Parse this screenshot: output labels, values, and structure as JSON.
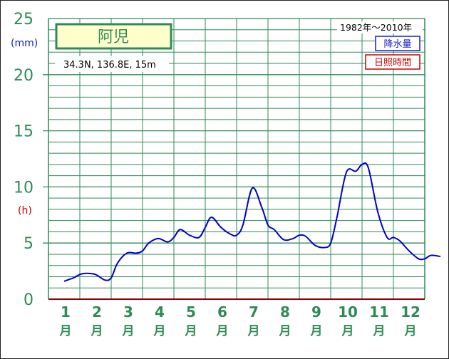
{
  "station": {
    "name": "阿児",
    "coords": "34.3N,  136.8E,  15m",
    "period": "1982年～2010年"
  },
  "legend": {
    "precipitation": "降水量",
    "sunshine": "日照時間"
  },
  "axis": {
    "unit_precip": "(mm)",
    "unit_sunshine": "(h)",
    "month_suffix": "月"
  },
  "colors": {
    "grid": "#2e8b57",
    "series": "#0000cc",
    "sunshine": "#cc0000",
    "label_bg": "#ffffcc"
  },
  "chart_data": {
    "type": "line",
    "title": "阿児",
    "xlabel": "",
    "ylabel": "(mm)",
    "ylim": [
      0,
      25
    ],
    "yticks": [
      0,
      5,
      10,
      15,
      20,
      25
    ],
    "grid": true,
    "legend_position": "top-right",
    "categories": [
      "1",
      "2",
      "3",
      "4",
      "5",
      "6",
      "7",
      "8",
      "9",
      "10",
      "11",
      "12"
    ],
    "series": [
      {
        "name": "降水量",
        "color": "#0000cc",
        "x": [
          0.5,
          0.8,
          1.0,
          1.2,
          1.5,
          1.8,
          2.0,
          2.2,
          2.5,
          2.8,
          3.0,
          3.2,
          3.5,
          3.8,
          4.0,
          4.2,
          4.5,
          4.8,
          5.0,
          5.2,
          5.5,
          5.8,
          6.0,
          6.2,
          6.5,
          6.8,
          7.0,
          7.2,
          7.5,
          7.8,
          8.0,
          8.2,
          8.5,
          8.8,
          9.0,
          9.2,
          9.5,
          9.8,
          10.0,
          10.2,
          10.5,
          10.8,
          11.0,
          11.2,
          11.5,
          11.8,
          12.0,
          12.2,
          12.5
        ],
        "y": [
          1.6,
          1.9,
          2.2,
          2.3,
          2.2,
          1.7,
          1.9,
          3.2,
          4.1,
          4.1,
          4.3,
          5.0,
          5.4,
          5.1,
          5.5,
          6.2,
          5.7,
          5.5,
          6.4,
          7.3,
          6.4,
          5.8,
          5.7,
          6.6,
          9.9,
          8.2,
          6.6,
          6.2,
          5.3,
          5.4,
          5.7,
          5.6,
          4.8,
          4.6,
          5.0,
          7.3,
          11.3,
          11.4,
          12.0,
          11.7,
          7.8,
          5.5,
          5.5,
          5.2,
          4.3,
          3.6,
          3.6,
          3.9,
          3.8
        ]
      }
    ]
  }
}
